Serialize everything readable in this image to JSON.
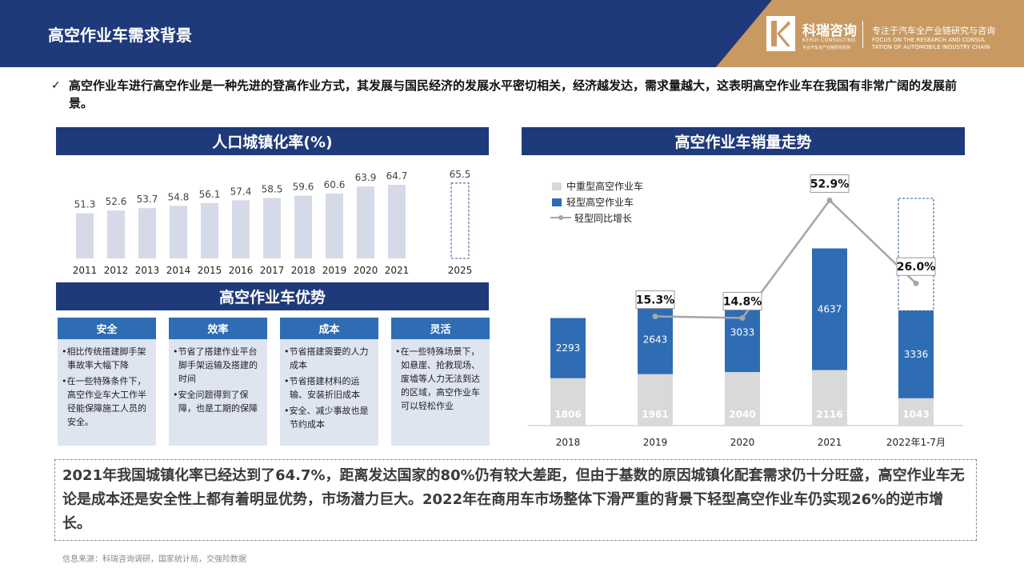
{
  "header": {
    "title": "高空作业车需求背景",
    "brand_cn": "科瑞咨询",
    "brand_en": "KERUI CONSULTING",
    "brand_tag": "专业汽车全产业链研究机构",
    "slogan_cn": "专注于汽车全产业链研究与咨询",
    "slogan_en1": "FOCUS ON THE RESEARCH AND CONSUL",
    "slogan_en2": "TATION OF AUTOMOBILE INDUSTRY CHAIN"
  },
  "intro": {
    "check": "✓",
    "text": "高空作业车进行高空作业是一种先进的登高作业方式，其发展与国民经济的发展水平密切相关，经济越发达，需求量越大，这表明高空作业车在我国有非常广阔的发展前景。"
  },
  "urban": {
    "title": "人口城镇化率(%)"
  },
  "sales": {
    "title": "高空作业车销量走势"
  },
  "advantages": {
    "title": "高空作业车优势",
    "cards": [
      {
        "title": "安全",
        "items": [
          "相比传统搭建脚手架事故率大幅下降",
          "在一些特殊条件下，高空作业车大工作半径能保障施工人员的安全。"
        ]
      },
      {
        "title": "效率",
        "items": [
          "节省了搭建作业平台脚手架运输及搭建的时间",
          "安全问题得到了保障，也是工期的保障"
        ]
      },
      {
        "title": "成本",
        "items": [
          "节省搭建需要的人力成本",
          "节省搭建材料的运输、安装折旧成本",
          "安全、减少事故也是节约成本"
        ]
      },
      {
        "title": "灵活",
        "items": [
          "在一些特殊场景下，如悬崖、抢救现场、废墟等人力无法到达的区域，高空作业车可以轻松作业"
        ]
      }
    ]
  },
  "summary": "2021年我国城镇化率已经达到了64.7%，距离发达国家的80%仍有较大差距，但由于基数的原因城镇化配套需求仍十分旺盛，高空作业车无论是成本还是安全性上都有着明显优势，市场潜力巨大。2022年在商用车市场整体下滑严重的背景下轻型高空作业车仍实现26%的逆市增长。",
  "source": "信息来源：科瑞咨询调研，国家统计局，交强险数据",
  "chart_data": [
    {
      "type": "bar",
      "title": "人口城镇化率(%)",
      "categories": [
        "2011",
        "2012",
        "2013",
        "2014",
        "2015",
        "2016",
        "2017",
        "2018",
        "2019",
        "2020",
        "2021",
        "2025"
      ],
      "values": [
        51.3,
        52.6,
        53.7,
        54.8,
        56.1,
        57.4,
        58.5,
        59.6,
        60.6,
        63.9,
        64.7,
        65.5
      ],
      "forecast_categories": [
        "2025"
      ],
      "colors": {
        "bar": "#d5d9e8",
        "forecast_border": "#2e5a9e"
      }
    },
    {
      "type": "bar",
      "stacked": true,
      "title": "高空作业车销量走势",
      "categories": [
        "2018",
        "2019",
        "2020",
        "2021",
        "2022年1-7月"
      ],
      "series": [
        {
          "name": "中重型高空作业车",
          "values": [
            1806,
            1961,
            2040,
            2116,
            1043
          ],
          "color": "#d9d9d9"
        },
        {
          "name": "轻型高空作业车",
          "values": [
            2293,
            2643,
            3033,
            4637,
            3336
          ],
          "color": "#2e6db4"
        },
        {
          "name": "轻型同比增长",
          "type": "line",
          "values": [
            null,
            15.3,
            14.8,
            52.9,
            26.0
          ],
          "labels": [
            "",
            "15.3%",
            "14.8%",
            "52.9%",
            "26.0%"
          ],
          "color": "#a6a6a6"
        }
      ],
      "legend": "top-left"
    }
  ]
}
